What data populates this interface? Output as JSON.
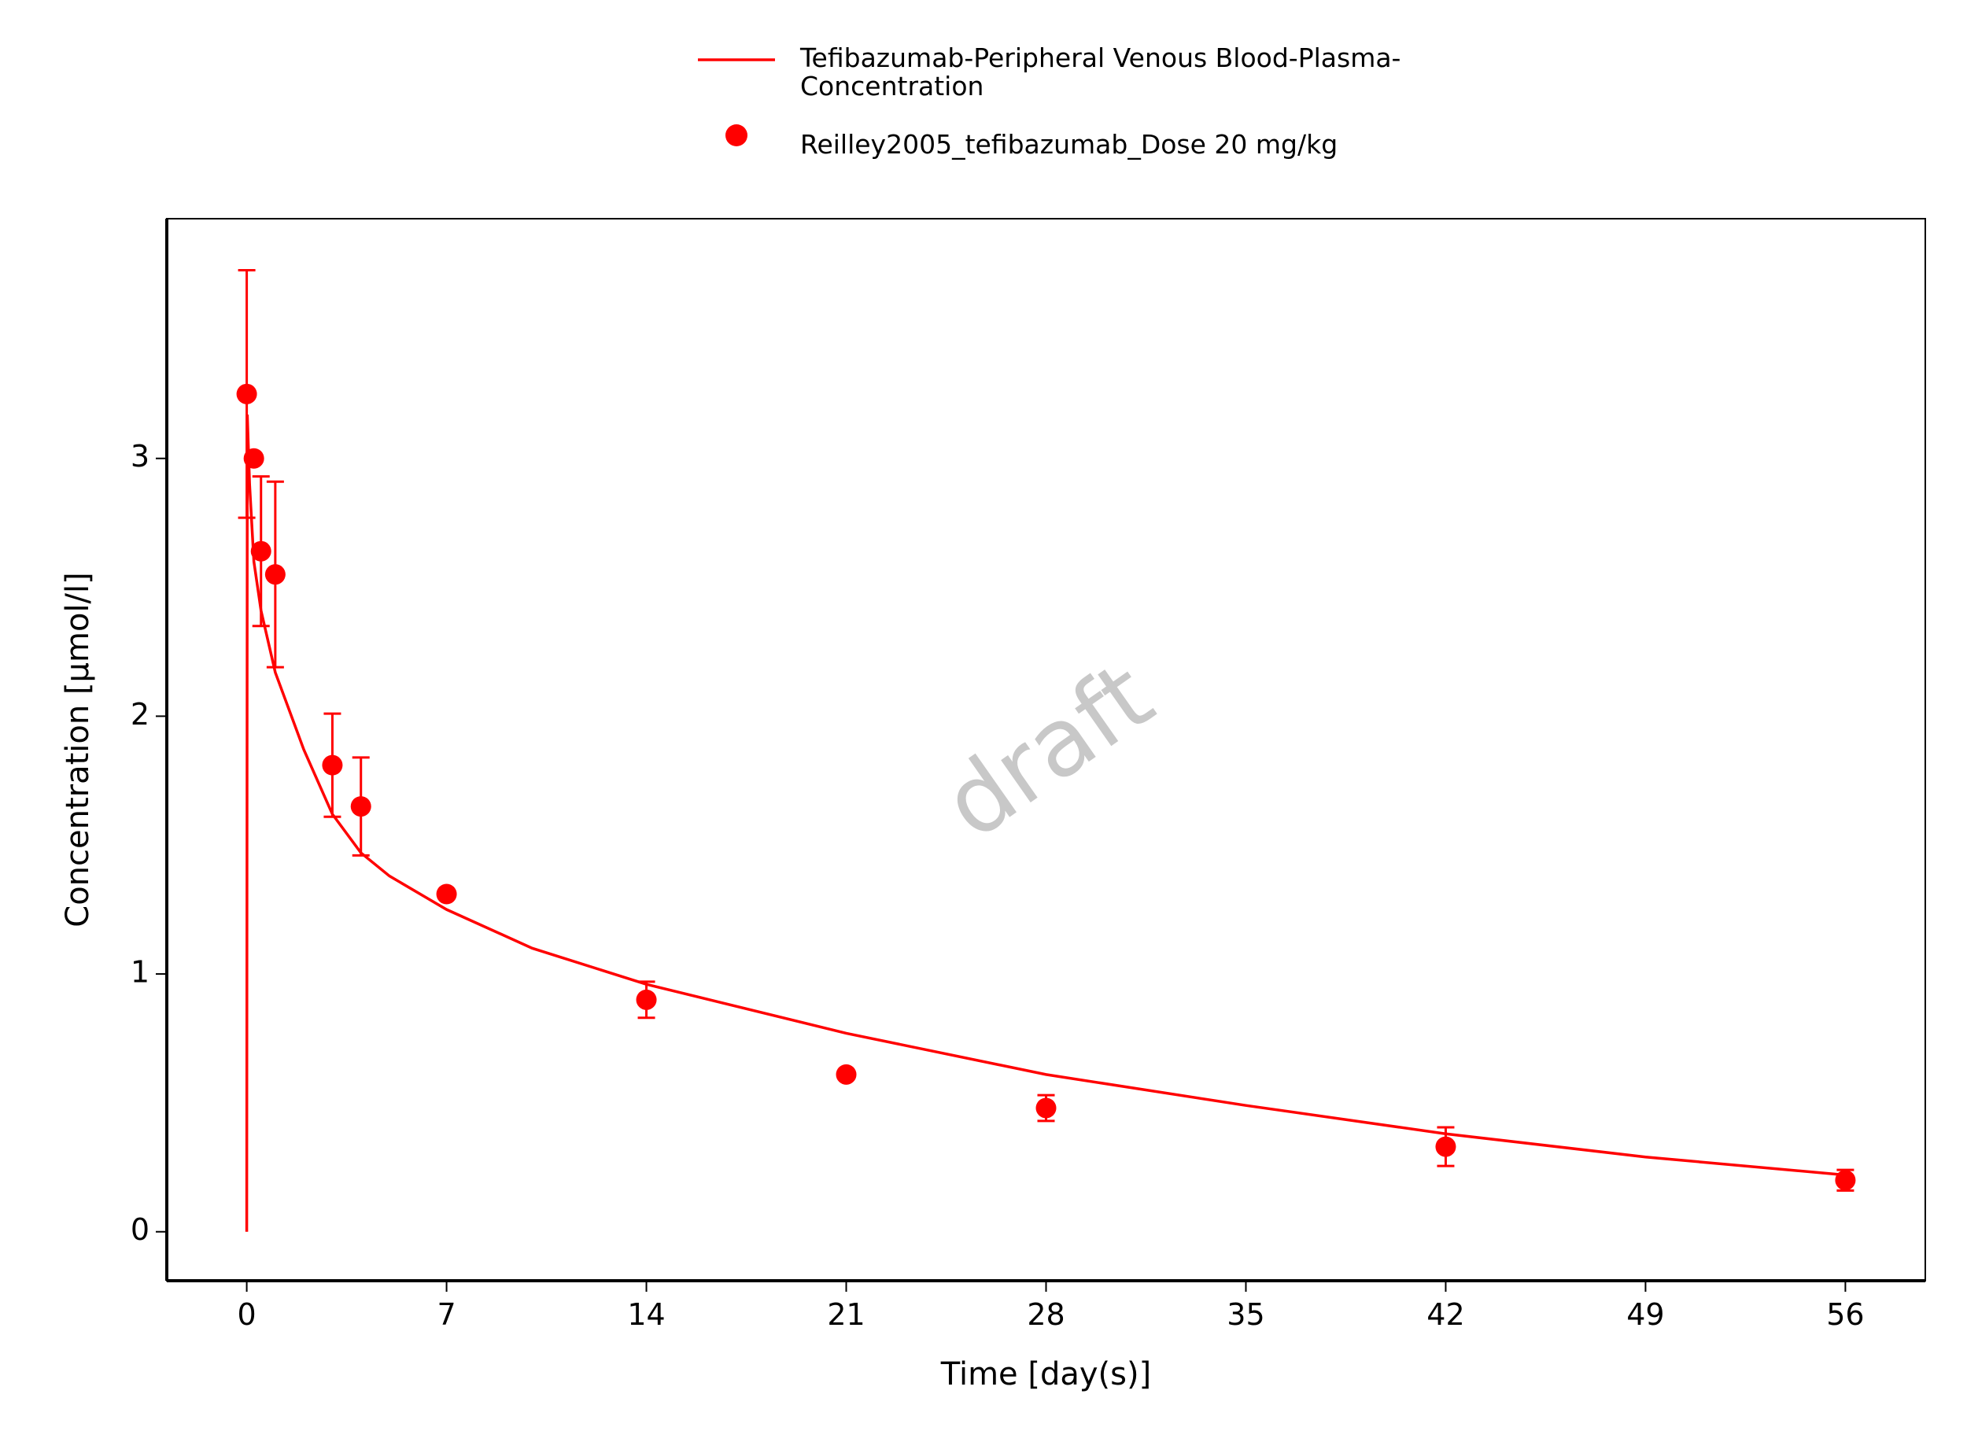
{
  "chart_data": {
    "type": "line",
    "legend_position": "top",
    "xlabel": "Time [day(s)]",
    "ylabel": "Concentration [µmol/l]",
    "watermark": "draft",
    "xlim": [
      -2.8,
      58.8
    ],
    "xticks": [
      0,
      7,
      14,
      21,
      28,
      35,
      42,
      49,
      56
    ],
    "ylim": [
      -0.19,
      3.93
    ],
    "yticks": [
      0,
      1,
      2,
      3
    ],
    "series": [
      {
        "name": "Tefibazumab-Peripheral Venous Blood-Plasma-Concentration",
        "type": "line",
        "color": "#ff0000",
        "x": [
          0,
          0.02,
          0.1,
          0.25,
          0.5,
          1,
          2,
          3,
          4,
          5,
          7,
          10,
          14,
          21,
          28,
          35,
          42,
          49,
          56
        ],
        "values": [
          0,
          3.17,
          2.9,
          2.6,
          2.41,
          2.17,
          1.87,
          1.62,
          1.47,
          1.38,
          1.25,
          1.1,
          0.96,
          0.77,
          0.61,
          0.49,
          0.38,
          0.29,
          0.22
        ]
      },
      {
        "name": "Reilley2005_tefibazumab_Dose 20 mg/kg",
        "type": "scatter",
        "color": "#ff0000",
        "x": [
          0,
          0.25,
          0.5,
          1,
          3,
          4,
          7,
          14,
          21,
          28,
          42,
          56
        ],
        "values": [
          3.25,
          3.0,
          2.64,
          2.55,
          1.81,
          1.65,
          1.31,
          0.9,
          0.61,
          0.48,
          0.33,
          0.2
        ],
        "errors": [
          0.48,
          null,
          0.29,
          0.36,
          0.2,
          0.19,
          null,
          0.07,
          null,
          0.05,
          0.075,
          0.04
        ]
      }
    ]
  }
}
